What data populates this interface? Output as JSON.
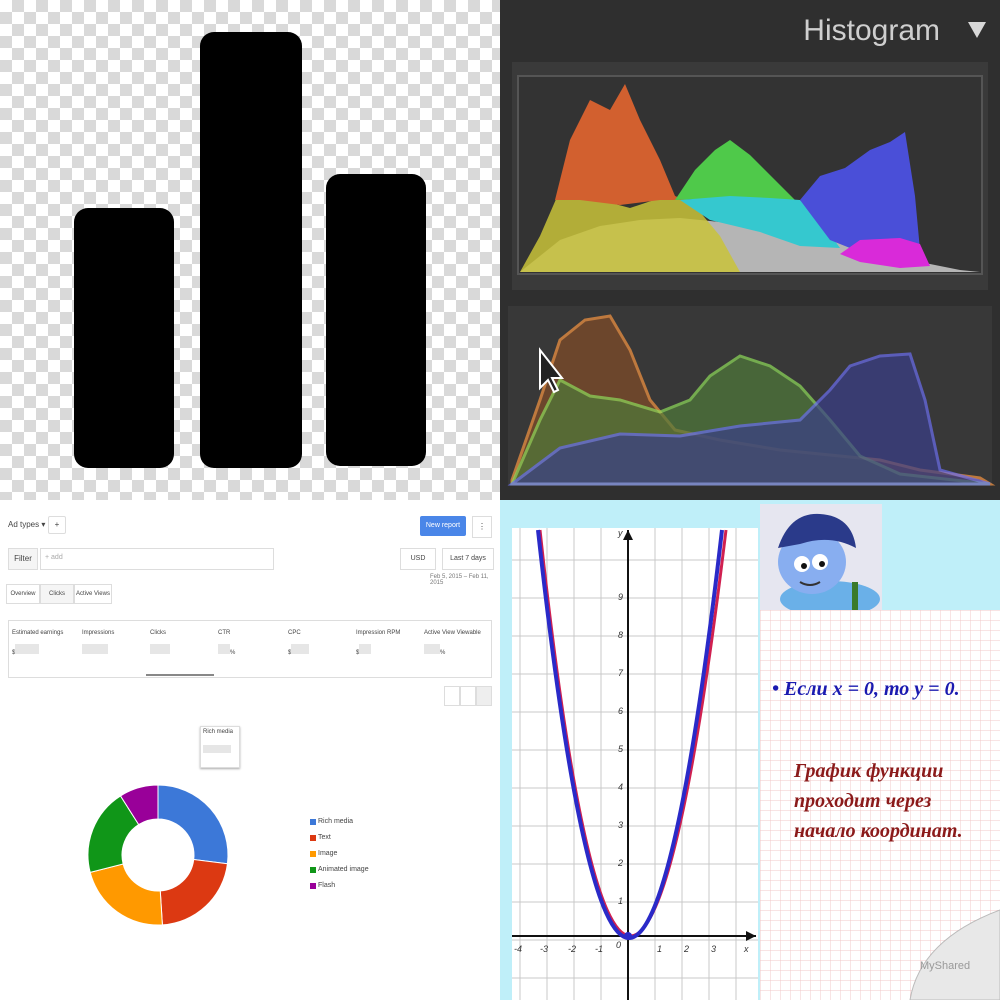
{
  "histogram": {
    "title": "Histogram"
  },
  "adsense": {
    "ad_types_label": "Ad types",
    "new_report_label": "New report",
    "filter_label": "Filter",
    "filter_placeholder": "+ add",
    "currency": "USD",
    "date_range": "Last 7 days",
    "date_span": "Feb 5, 2015 – Feb 11, 2015",
    "tabs": [
      "Overview",
      "Clicks",
      "Active Views"
    ],
    "metrics": [
      {
        "label": "Estimated earnings",
        "prefix": "$"
      },
      {
        "label": "Impressions",
        "prefix": ""
      },
      {
        "label": "Clicks",
        "prefix": ""
      },
      {
        "label": "CTR",
        "suffix": "%"
      },
      {
        "label": "CPC",
        "prefix": "$"
      },
      {
        "label": "Impression RPM",
        "prefix": "$"
      },
      {
        "label": "Active View Viewable",
        "suffix": "%"
      }
    ],
    "tooltip": "Rich media",
    "legend": [
      {
        "name": "Rich media",
        "color": "#3c78d8"
      },
      {
        "name": "Text",
        "color": "#dc3912"
      },
      {
        "name": "Image",
        "color": "#ff9900"
      },
      {
        "name": "Animated image",
        "color": "#109618"
      },
      {
        "name": "Flash",
        "color": "#990099"
      }
    ],
    "donut_values": [
      27,
      22,
      22,
      20,
      9
    ]
  },
  "parabola": {
    "y_axis_label": "y",
    "x_axis_label": "x",
    "origin_label": "0",
    "x_ticks": [
      "-4",
      "-3",
      "-2",
      "-1",
      "1",
      "2",
      "3"
    ],
    "y_ticks": [
      "9",
      "8",
      "7",
      "6",
      "5",
      "4",
      "3",
      "2",
      "1"
    ],
    "statement": "Если  x = 0, то y = 0.",
    "conclusion_lines": [
      "График функции",
      "проходит через",
      "начало координат."
    ],
    "watermark": "MyShared"
  }
}
